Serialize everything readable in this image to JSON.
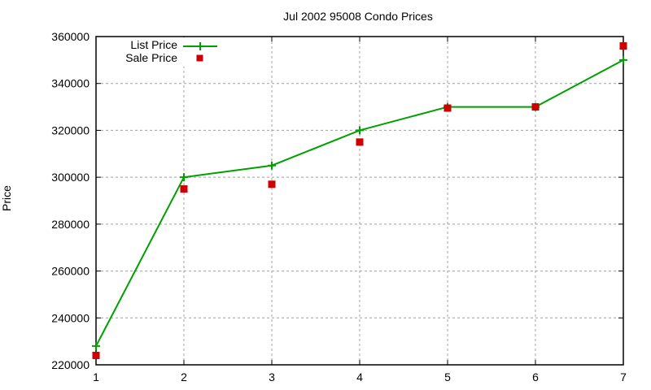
{
  "chart_data": {
    "type": "line",
    "title": "Jul 2002 95008 Condo Prices",
    "xlabel": "",
    "ylabel": "Price",
    "x": [
      1,
      2,
      3,
      4,
      5,
      6,
      7
    ],
    "xlim": [
      1,
      7
    ],
    "ylim": [
      220000,
      360000
    ],
    "xticks": [
      "1",
      "2",
      "3",
      "4",
      "5",
      "6",
      "7"
    ],
    "yticks": [
      "220000",
      "240000",
      "260000",
      "280000",
      "300000",
      "320000",
      "340000",
      "360000"
    ],
    "grid": true,
    "legend_position": "top-left",
    "series": [
      {
        "name": "List Price",
        "style": "linespoints",
        "color": "#00a000",
        "values": [
          228000,
          300000,
          305000,
          320000,
          330000,
          330000,
          350000
        ]
      },
      {
        "name": "Sale Price",
        "style": "points",
        "color": "#cc0000",
        "values": [
          224000,
          295000,
          297000,
          315000,
          329500,
          330000,
          356000
        ]
      }
    ]
  },
  "legend": {
    "list_price": "List Price",
    "sale_price": "Sale Price"
  }
}
